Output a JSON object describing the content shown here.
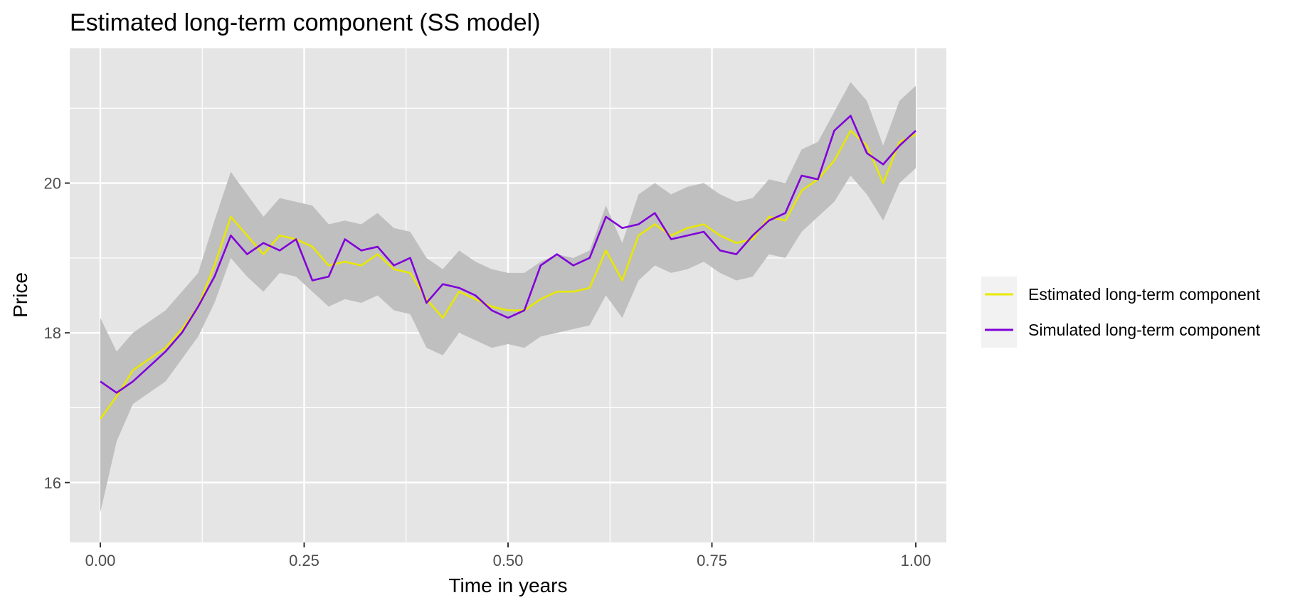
{
  "chart_data": {
    "type": "line",
    "title": "Estimated long-term component (SS model)",
    "xlabel": "Time in years",
    "ylabel": "Price",
    "xlim": [
      -0.0375,
      1.0375
    ],
    "ylim": [
      15.2,
      21.8
    ],
    "x_ticks": [
      0.0,
      0.25,
      0.5,
      0.75,
      1.0
    ],
    "x_tick_labels": [
      "0.00",
      "0.25",
      "0.50",
      "0.75",
      "1.00"
    ],
    "y_ticks": [
      16,
      18,
      20
    ],
    "y_tick_labels": [
      "16",
      "18",
      "20"
    ],
    "grid": true,
    "legend_position": "right",
    "colors": {
      "panel": "#e5e5e5",
      "grid": "#ffffff",
      "band": "#bfbfbf",
      "estimated": "#e8e800",
      "simulated": "#8000d8",
      "legend_key_bg": "#f2f2f2"
    },
    "legend": [
      {
        "label": "Estimated long-term component",
        "color": "#e8e800"
      },
      {
        "label": "Simulated long-term component",
        "color": "#8000d8"
      }
    ],
    "x": [
      0.0,
      0.02,
      0.04,
      0.06,
      0.08,
      0.1,
      0.12,
      0.14,
      0.16,
      0.18,
      0.2,
      0.22,
      0.24,
      0.26,
      0.28,
      0.3,
      0.32,
      0.34,
      0.36,
      0.38,
      0.4,
      0.42,
      0.44,
      0.46,
      0.48,
      0.5,
      0.52,
      0.54,
      0.56,
      0.58,
      0.6,
      0.62,
      0.64,
      0.66,
      0.68,
      0.7,
      0.72,
      0.74,
      0.76,
      0.78,
      0.8,
      0.82,
      0.84,
      0.86,
      0.88,
      0.9,
      0.92,
      0.94,
      0.96,
      0.98,
      1.0
    ],
    "series": [
      {
        "name": "Estimated long-term component",
        "values": [
          16.85,
          17.15,
          17.5,
          17.65,
          17.8,
          18.05,
          18.35,
          18.9,
          19.55,
          19.3,
          19.05,
          19.3,
          19.25,
          19.15,
          18.9,
          18.95,
          18.9,
          19.05,
          18.85,
          18.8,
          18.45,
          18.2,
          18.55,
          18.45,
          18.35,
          18.3,
          18.3,
          18.45,
          18.55,
          18.55,
          18.6,
          19.1,
          18.7,
          19.3,
          19.45,
          19.3,
          19.4,
          19.45,
          19.3,
          19.2,
          19.25,
          19.55,
          19.5,
          19.9,
          20.05,
          20.3,
          20.7,
          20.5,
          20.0,
          20.55,
          20.65
        ]
      },
      {
        "name": "Simulated long-term component",
        "values": [
          17.35,
          17.2,
          17.35,
          17.55,
          17.75,
          18.0,
          18.35,
          18.75,
          19.3,
          19.05,
          19.2,
          19.1,
          19.25,
          18.7,
          18.75,
          19.25,
          19.1,
          19.15,
          18.9,
          19.0,
          18.4,
          18.65,
          18.6,
          18.5,
          18.3,
          18.2,
          18.3,
          18.9,
          19.05,
          18.9,
          19.0,
          19.55,
          19.4,
          19.45,
          19.6,
          19.25,
          19.3,
          19.35,
          19.1,
          19.05,
          19.3,
          19.5,
          19.6,
          20.1,
          20.05,
          20.7,
          20.9,
          20.4,
          20.25,
          20.5,
          20.7
        ]
      }
    ],
    "band": {
      "lower": [
        15.6,
        16.55,
        17.05,
        17.2,
        17.35,
        17.65,
        17.95,
        18.4,
        19.0,
        18.75,
        18.55,
        18.8,
        18.75,
        18.55,
        18.35,
        18.45,
        18.4,
        18.5,
        18.3,
        18.25,
        17.8,
        17.7,
        18.0,
        17.9,
        17.8,
        17.85,
        17.8,
        17.95,
        18.0,
        18.05,
        18.1,
        18.5,
        18.2,
        18.7,
        18.9,
        18.8,
        18.85,
        18.95,
        18.8,
        18.7,
        18.75,
        19.05,
        19.0,
        19.35,
        19.55,
        19.75,
        20.1,
        19.85,
        19.5,
        20.0,
        20.2
      ],
      "upper": [
        18.2,
        17.75,
        18.0,
        18.15,
        18.3,
        18.55,
        18.8,
        19.5,
        20.15,
        19.85,
        19.55,
        19.8,
        19.75,
        19.7,
        19.45,
        19.5,
        19.45,
        19.6,
        19.4,
        19.35,
        19.0,
        18.85,
        19.1,
        18.95,
        18.85,
        18.8,
        18.8,
        18.95,
        19.05,
        19.0,
        19.1,
        19.7,
        19.2,
        19.85,
        20.0,
        19.85,
        19.95,
        20.0,
        19.85,
        19.75,
        19.8,
        20.05,
        20.0,
        20.45,
        20.55,
        20.95,
        21.35,
        21.1,
        20.5,
        21.1,
        21.3
      ]
    }
  }
}
